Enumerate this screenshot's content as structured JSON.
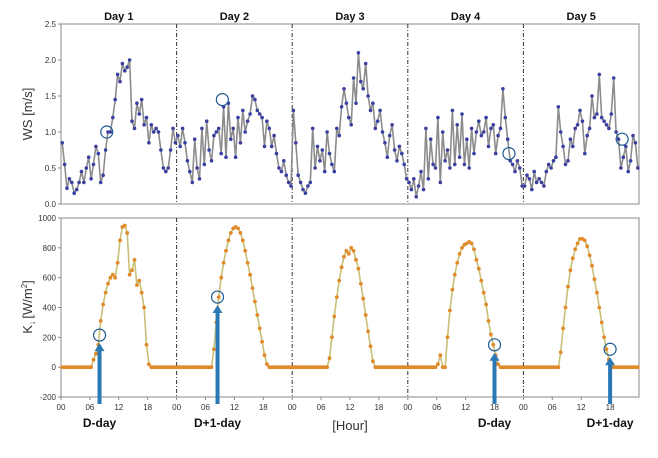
{
  "chart_data": [
    {
      "type": "line",
      "panel": "top",
      "ylabel": "WS [m/s]",
      "ylim": [
        0,
        2.5
      ],
      "y_ticks": [
        "0.0",
        "0.5",
        "1.0",
        "1.5",
        "2.0",
        "2.5"
      ],
      "days": [
        "Day 1",
        "Day 2",
        "Day 3",
        "Day 4",
        "Day 5"
      ],
      "x_tick_labels": [
        "00",
        "06",
        "12",
        "18",
        "00",
        "06",
        "12",
        "18",
        "00",
        "06",
        "12",
        "18",
        "00",
        "06",
        "12",
        "18",
        "00",
        "06",
        "12",
        "18"
      ],
      "grid": false,
      "colors": {
        "line": "#8c8c8c",
        "marker": "#3a3fa0",
        "circle": "#1f5a93"
      },
      "series": [
        {
          "values": [
            0.85,
            0.55,
            0.22,
            0.35,
            0.3,
            0.15,
            0.2,
            0.3,
            0.45,
            0.3,
            0.5,
            0.65,
            0.35,
            0.55,
            0.8,
            0.7,
            0.3,
            0.4,
            0.75,
            1.0,
            1.0,
            1.2,
            1.45,
            1.8,
            1.7,
            1.95,
            1.85,
            1.9,
            2.0,
            1.15,
            1.05,
            1.4,
            1.25,
            1.45,
            1.1,
            1.2,
            0.85,
            1.1,
            1.0,
            1.05,
            1.0,
            0.75,
            0.5,
            0.45,
            0.5,
            0.75,
            1.05,
            0.85,
            0.95,
            0.8,
            1.05,
            0.85,
            0.6,
            0.45,
            0.3,
            0.9,
            0.5,
            0.35,
            1.05,
            0.55,
            1.15,
            0.75,
            0.6,
            0.95,
            1.0,
            1.05,
            0.7,
            1.35,
            0.65,
            1.4,
            0.9,
            1.05,
            0.65,
            1.2,
            0.85,
            1.3,
            1.0,
            1.15,
            1.25,
            1.5,
            1.45,
            1.3,
            1.25,
            1.2,
            0.8,
            1.15,
            1.05,
            0.8,
            0.95,
            0.7,
            0.5,
            0.45,
            0.6,
            0.4,
            0.3,
            0.25,
            1.3,
            0.85,
            0.4,
            0.3,
            0.2,
            0.15,
            0.25,
            0.3,
            1.05,
            0.5,
            0.8,
            0.6,
            0.75,
            0.45,
            1.0,
            0.7,
            0.55,
            0.45,
            1.05,
            0.95,
            1.35,
            1.6,
            1.4,
            1.2,
            1.1,
            1.75,
            1.4,
            2.1,
            1.7,
            1.6,
            1.95,
            1.5,
            1.3,
            1.4,
            1.05,
            1.15,
            1.3,
            1.0,
            0.85,
            0.65,
            0.95,
            1.1,
            0.75,
            0.6,
            0.8,
            0.7,
            0.55,
            0.35,
            0.3,
            0.2,
            0.35,
            0.1,
            0.25,
            0.45,
            0.2,
            1.05,
            0.35,
            0.9,
            0.55,
            0.5,
            1.2,
            0.3,
            1.0,
            0.6,
            0.75,
            0.5,
            1.3,
            0.55,
            1.1,
            0.65,
            1.25,
            0.55,
            0.9,
            0.5,
            1.05,
            0.7,
            1.0,
            1.15,
            0.95,
            1.0,
            1.2,
            0.8,
            1.05,
            1.1,
            0.7,
            0.95,
            1.05,
            1.6,
            1.2,
            0.9,
            0.6,
            0.55,
            0.45,
            0.6,
            0.5,
            0.25,
            0.25,
            0.4,
            0.35,
            0.2,
            0.45,
            0.3,
            0.35,
            0.3,
            0.25,
            0.45,
            0.55,
            0.5,
            0.6,
            0.65,
            1.35,
            1.0,
            0.8,
            0.55,
            0.6,
            0.9,
            0.8,
            1.05,
            1.1,
            1.3,
            1.15,
            0.7,
            0.95,
            1.05,
            1.5,
            1.2,
            1.25,
            1.8,
            1.2,
            1.15,
            1.1,
            1.05,
            1.25,
            1.75,
            1.0,
            0.9,
            0.5,
            0.65,
            0.8,
            0.45,
            0.6,
            0.95,
            0.85,
            0.5
          ]
        }
      ],
      "highlights": [
        {
          "day": 1,
          "hour": 9.5,
          "value": 1.0
        },
        {
          "day": 2,
          "hour": 9.5,
          "value": 1.45
        },
        {
          "day": 4,
          "hour": 21.0,
          "value": 0.7
        },
        {
          "day": 5,
          "hour": 20.5,
          "value": 0.9
        }
      ]
    },
    {
      "type": "line",
      "panel": "bottom",
      "ylabel": "K",
      "ylabel_unit": "[W/m",
      "ylabel_sup": "2",
      "ylabel_close": "]",
      "ylabel_arrow": "↓",
      "ylim": [
        -200,
        1000
      ],
      "y_ticks": [
        "-200",
        "0",
        "200",
        "400",
        "600",
        "800",
        "1000"
      ],
      "xlabel": "[Hour]",
      "x_tick_labels": [
        "00",
        "06",
        "12",
        "18",
        "00",
        "06",
        "12",
        "18",
        "00",
        "06",
        "12",
        "18",
        "00",
        "06",
        "12",
        "18",
        "00",
        "06",
        "12",
        "18"
      ],
      "grid": false,
      "colors": {
        "line": "#c8c077",
        "marker": "#e08a2a",
        "circle": "#1f5a93",
        "arrow": "#2a79b5"
      },
      "series": [
        {
          "values": [
            0,
            0,
            0,
            0,
            0,
            0,
            0,
            0,
            0,
            0,
            0,
            0,
            0,
            50,
            90,
            150,
            310,
            420,
            500,
            560,
            600,
            620,
            600,
            700,
            850,
            940,
            950,
            900,
            620,
            650,
            720,
            550,
            580,
            500,
            400,
            150,
            20,
            0,
            0,
            0,
            0,
            0,
            0,
            0,
            0,
            0,
            0,
            0,
            0,
            0,
            0,
            0,
            0,
            0,
            0,
            0,
            0,
            0,
            0,
            0,
            0,
            0,
            0,
            120,
            300,
            470,
            600,
            700,
            780,
            850,
            900,
            930,
            940,
            930,
            900,
            850,
            780,
            700,
            620,
            530,
            440,
            350,
            260,
            170,
            80,
            20,
            0,
            0,
            0,
            0,
            0,
            0,
            0,
            0,
            0,
            0,
            0,
            0,
            0,
            0,
            0,
            0,
            0,
            0,
            0,
            0,
            0,
            0,
            0,
            0,
            0,
            60,
            200,
            340,
            470,
            580,
            670,
            740,
            780,
            760,
            800,
            780,
            720,
            660,
            560,
            460,
            350,
            240,
            140,
            40,
            0,
            0,
            0,
            0,
            0,
            0,
            0,
            0,
            0,
            0,
            0,
            0,
            0,
            0,
            0,
            0,
            0,
            0,
            0,
            0,
            0,
            0,
            0,
            0,
            0,
            0,
            20,
            80,
            0,
            0,
            200,
            380,
            520,
            620,
            700,
            760,
            800,
            820,
            830,
            840,
            830,
            790,
            720,
            660,
            580,
            500,
            420,
            310,
            220,
            150,
            80,
            20,
            0,
            0,
            0,
            0,
            0,
            0,
            0,
            0,
            0,
            0,
            0,
            0,
            0,
            0,
            0,
            0,
            0,
            0,
            0,
            0,
            0,
            0,
            0,
            0,
            0,
            100,
            260,
            400,
            540,
            650,
            730,
            790,
            830,
            860,
            860,
            850,
            810,
            750,
            680,
            590,
            500,
            400,
            300,
            200,
            120,
            50,
            0,
            0,
            0,
            0,
            0,
            0,
            0,
            0,
            0,
            0,
            0,
            0
          ]
        }
      ],
      "highlights": [
        {
          "day": 1,
          "hour": 8.0,
          "value": 215
        },
        {
          "day": 2,
          "hour": 8.5,
          "value": 470
        },
        {
          "day": 4,
          "hour": 18.0,
          "value": 150
        },
        {
          "day": 5,
          "hour": 18.0,
          "value": 120
        }
      ],
      "annotations": [
        {
          "label": "D-day",
          "day": 1,
          "hour": 8.0
        },
        {
          "label": "D+1-day",
          "day": 2,
          "hour": 8.5
        },
        {
          "label": "D-day",
          "day": 4,
          "hour": 18.0
        },
        {
          "label": "D+1-day",
          "day": 5,
          "hour": 18.0
        }
      ]
    }
  ]
}
